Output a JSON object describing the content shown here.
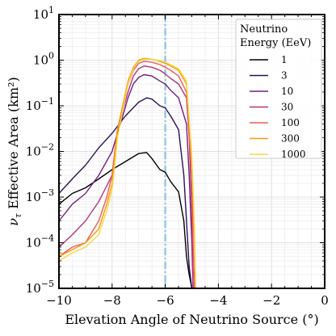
{
  "chart_data": {
    "type": "line",
    "xlabel": "Elevation Angle of Neutrino Source (°)",
    "ylabel_main": "ν",
    "ylabel_sub": "τ",
    "ylabel_rest": " Effective Area (km²)",
    "xlim": [
      -10,
      0
    ],
    "ylim_log10": [
      -5,
      1
    ],
    "yscale": "log",
    "grid": true,
    "x_ticks": [
      "−10",
      "−8",
      "−6",
      "−4",
      "−2",
      "0"
    ],
    "y_ticks": [
      {
        "exp": -5,
        "base": "10",
        "sup": "−5"
      },
      {
        "exp": -4,
        "base": "10",
        "sup": "−4"
      },
      {
        "exp": -3,
        "base": "10",
        "sup": "−3"
      },
      {
        "exp": -2,
        "base": "10",
        "sup": "−2"
      },
      {
        "exp": -1,
        "base": "10",
        "sup": "−1"
      },
      {
        "exp": 0,
        "base": "10",
        "sup": "0"
      },
      {
        "exp": 1,
        "base": "10",
        "sup": "1"
      }
    ],
    "vline": {
      "x": -6.0,
      "color": "#87c5dd",
      "style": "dash-dot"
    },
    "legend": {
      "title_lines": [
        "Neutrino",
        "Energy (EeV)"
      ],
      "placement": "top-right"
    },
    "series": [
      {
        "name": "1",
        "color": "#000004",
        "x": [
          -10.0,
          -9.5,
          -9.0,
          -8.5,
          -8.0,
          -7.5,
          -7.0,
          -6.7,
          -6.5,
          -6.2,
          -6.0,
          -5.8,
          -5.5,
          -5.3,
          -5.2,
          -5.1,
          -5.0
        ],
        "y": [
          0.0007,
          0.0012,
          0.0016,
          0.0025,
          0.004,
          0.006,
          0.009,
          0.0095,
          0.007,
          0.004,
          0.0035,
          0.0022,
          0.0013,
          0.0003,
          5e-05,
          2e-05,
          1e-05
        ]
      },
      {
        "name": "3",
        "color": "#2c105c",
        "x": [
          -10.0,
          -9.5,
          -9.0,
          -8.5,
          -8.0,
          -7.5,
          -7.0,
          -6.7,
          -6.5,
          -6.2,
          -6.0,
          -5.8,
          -5.5,
          -5.3,
          -5.2,
          -5.1,
          -5.0
        ],
        "y": [
          0.0012,
          0.0025,
          0.005,
          0.012,
          0.025,
          0.06,
          0.12,
          0.15,
          0.14,
          0.1,
          0.09,
          0.06,
          0.03,
          0.003,
          0.0003,
          3e-05,
          1e-05
        ]
      },
      {
        "name": "10",
        "color": "#711f81",
        "x": [
          -10.0,
          -9.5,
          -9.0,
          -8.5,
          -8.0,
          -7.8,
          -7.6,
          -7.4,
          -7.2,
          -7.0,
          -6.8,
          -6.5,
          -6.2,
          -6.0,
          -5.8,
          -5.5,
          -5.2,
          -5.1,
          -5.0,
          -4.95
        ],
        "y": [
          0.0003,
          0.0007,
          0.0012,
          0.003,
          0.01,
          0.025,
          0.06,
          0.15,
          0.3,
          0.42,
          0.48,
          0.45,
          0.35,
          0.3,
          0.22,
          0.15,
          0.04,
          0.003,
          0.0001,
          1e-05
        ]
      },
      {
        "name": "30",
        "color": "#b63679",
        "x": [
          -10.0,
          -9.5,
          -9.0,
          -8.5,
          -8.0,
          -7.9,
          -7.8,
          -7.6,
          -7.4,
          -7.2,
          -7.0,
          -6.8,
          -6.5,
          -6.2,
          -6.0,
          -5.8,
          -5.5,
          -5.2,
          -5.1,
          -5.0,
          -4.95
        ],
        "y": [
          8e-05,
          0.00015,
          0.0003,
          0.0008,
          0.003,
          0.008,
          0.03,
          0.08,
          0.2,
          0.45,
          0.65,
          0.75,
          0.7,
          0.6,
          0.5,
          0.4,
          0.3,
          0.15,
          0.02,
          0.0005,
          1e-05
        ]
      },
      {
        "name": "100",
        "color": "#ee5b5e",
        "x": [
          -10.0,
          -9.5,
          -9.0,
          -8.5,
          -8.2,
          -8.0,
          -7.9,
          -7.8,
          -7.6,
          -7.4,
          -7.2,
          -7.0,
          -6.8,
          -6.5,
          -6.2,
          -6.0,
          -5.8,
          -5.5,
          -5.2,
          -5.0,
          -4.95,
          -4.9
        ],
        "y": [
          5e-05,
          8e-05,
          0.0001,
          0.0003,
          0.001,
          0.003,
          0.01,
          0.03,
          0.1,
          0.3,
          0.6,
          0.85,
          0.95,
          0.9,
          0.8,
          0.7,
          0.6,
          0.45,
          0.2,
          0.003,
          0.0001,
          1e-05
        ]
      },
      {
        "name": "300",
        "color": "#fb9b06",
        "x": [
          -10.0,
          -9.5,
          -9.0,
          -8.5,
          -8.2,
          -8.0,
          -7.9,
          -7.8,
          -7.6,
          -7.4,
          -7.2,
          -7.0,
          -6.8,
          -6.5,
          -6.2,
          -6.0,
          -5.8,
          -5.5,
          -5.2,
          -5.0,
          -4.9,
          -4.85
        ],
        "y": [
          5e-05,
          7e-05,
          0.0001,
          0.0002,
          0.0007,
          0.002,
          0.008,
          0.03,
          0.1,
          0.35,
          0.7,
          1.0,
          1.1,
          1.05,
          0.95,
          0.85,
          0.75,
          0.6,
          0.3,
          0.005,
          0.0001,
          1e-05
        ]
      },
      {
        "name": "1000",
        "color": "#f6d746",
        "x": [
          -10.0,
          -9.5,
          -9.0,
          -8.5,
          -8.2,
          -8.0,
          -7.9,
          -7.8,
          -7.6,
          -7.4,
          -7.2,
          -7.0,
          -6.8,
          -6.5,
          -6.2,
          -6.0,
          -5.8,
          -5.5,
          -5.2,
          -5.0,
          -4.9,
          -4.85
        ],
        "y": [
          4e-05,
          6e-05,
          8e-05,
          0.00015,
          0.0005,
          0.0015,
          0.005,
          0.02,
          0.08,
          0.3,
          0.65,
          0.95,
          1.05,
          1.05,
          0.98,
          0.9,
          0.8,
          0.65,
          0.35,
          0.008,
          0.0002,
          1e-05
        ]
      }
    ]
  }
}
